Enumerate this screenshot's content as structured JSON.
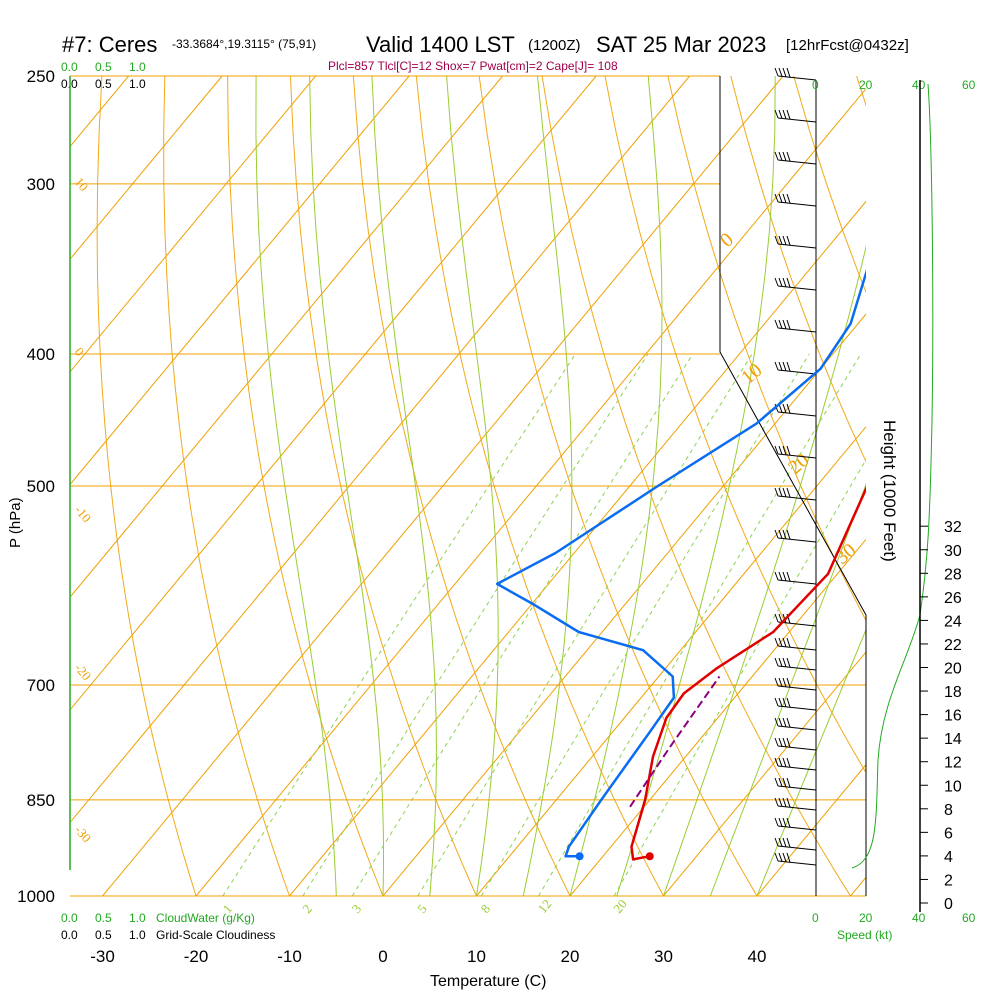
{
  "header": {
    "title": "#7: Ceres",
    "location": "-33.3684°,19.3115° (75,91)",
    "valid": "Valid 1400 LST",
    "zulu": "(1200Z)",
    "date": "SAT 25 Mar 2023",
    "forecast": "[12hrFcst@0432z]",
    "indices": "Plcl=857 Tlcl[C]=12 Shox=7 Pwat[cm]=2 Cape[J]= 108"
  },
  "colors": {
    "temperature": "#e00000",
    "dewpoint": "#0a6cf0",
    "parcel": "#8b0080",
    "isotherm": "#f0a000",
    "dry_adiabat": "#9acd32",
    "moist_adiabat": "#9acd32",
    "mixing_ratio": "#8fd14f",
    "accent_green": "#22aa22",
    "indices_text": "#a0004a"
  },
  "chart_data": {
    "type": "line",
    "xlabel": "Temperature (C)",
    "ylabel": "P (hPa)",
    "y2label": "Height (1000 Feet)",
    "x_ticks": [
      "-30",
      "-20",
      "-10",
      "0",
      "10",
      "20",
      "30",
      "40"
    ],
    "p_ticks": [
      "250",
      "300",
      "400",
      "500",
      "700",
      "850",
      "1000"
    ],
    "height_ticks": [
      "0",
      "2",
      "4",
      "6",
      "8",
      "10",
      "12",
      "14",
      "16",
      "18",
      "20",
      "22",
      "24",
      "26",
      "28",
      "30",
      "32"
    ],
    "mixing_ratio_labels": [
      "1",
      "2",
      "3",
      "5",
      "8",
      "12",
      "20"
    ],
    "isotherm_labels": [
      "10",
      "0",
      "-10",
      "-20",
      "-30"
    ],
    "right_labels": [
      "0",
      "10",
      "20",
      "30"
    ],
    "cloud_scale": [
      "0.0",
      "0.5",
      "1.0"
    ],
    "cloudwater_label": "CloudWater (g/Kg)",
    "cloudiness_label": "Grid-Scale Cloudiness",
    "speed_ticks": [
      "0",
      "20",
      "40",
      "60"
    ],
    "speed_label": "Speed (kt)",
    "temperature_points": [
      {
        "t": 25,
        "p": 935
      },
      {
        "t": 23.5,
        "p": 940
      },
      {
        "t": 22.2,
        "p": 920
      },
      {
        "t": 19.5,
        "p": 850
      },
      {
        "t": 16.5,
        "p": 790
      },
      {
        "t": 14.5,
        "p": 740
      },
      {
        "t": 14.2,
        "p": 710
      },
      {
        "t": 15.5,
        "p": 680
      },
      {
        "t": 18.3,
        "p": 640
      },
      {
        "t": 19,
        "p": 580
      },
      {
        "t": 15.4,
        "p": 500
      },
      {
        "t": 9.5,
        "p": 400
      },
      {
        "t": 6.5,
        "p": 360
      },
      {
        "t": 3,
        "p": 320
      },
      {
        "t": 0.5,
        "p": 300
      },
      {
        "t": -4,
        "p": 270
      },
      {
        "t": -5.5,
        "p": 258
      }
    ],
    "dewpoint_points": [
      {
        "t": 17.5,
        "p": 935
      },
      {
        "t": 16,
        "p": 935
      },
      {
        "t": 15.5,
        "p": 920
      },
      {
        "t": 14.8,
        "p": 850
      },
      {
        "t": 14,
        "p": 760
      },
      {
        "t": 13.5,
        "p": 715
      },
      {
        "t": 11.5,
        "p": 690
      },
      {
        "t": 6,
        "p": 660
      },
      {
        "t": -2.5,
        "p": 640
      },
      {
        "t": -10,
        "p": 610
      },
      {
        "t": -15.5,
        "p": 590
      },
      {
        "t": -12,
        "p": 560
      },
      {
        "t": -7,
        "p": 500
      },
      {
        "t": -2,
        "p": 450
      },
      {
        "t": 0,
        "p": 410
      },
      {
        "t": -0.8,
        "p": 380
      },
      {
        "t": -4,
        "p": 345
      },
      {
        "t": -9,
        "p": 300
      },
      {
        "t": -13,
        "p": 258
      }
    ],
    "parcel_points": [
      {
        "t": 18.5,
        "p": 860
      },
      {
        "t": 17.5,
        "p": 780
      },
      {
        "t": 16.5,
        "p": 690
      }
    ]
  }
}
